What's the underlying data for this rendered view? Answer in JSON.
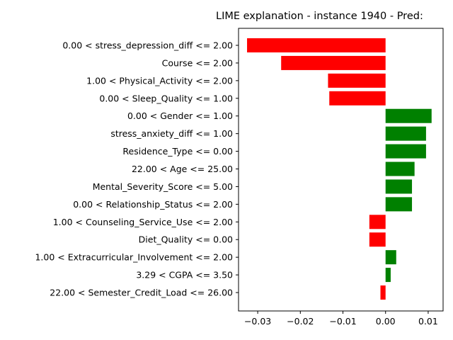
{
  "chart_data": {
    "type": "bar",
    "orientation": "horizontal",
    "title": "LIME explanation - instance 1940 - Pred:",
    "xlabel": "",
    "ylabel": "",
    "xlim": [
      -0.0345,
      0.0135
    ],
    "xticks": [
      -0.03,
      -0.02,
      -0.01,
      0.0,
      0.01
    ],
    "xtick_labels": [
      "−0.03",
      "−0.02",
      "−0.01",
      "0.00",
      "0.01"
    ],
    "grid": false,
    "legend": "none",
    "colors": {
      "positive": "#008000",
      "negative": "#ff0000"
    },
    "categories": [
      "0.00 < stress_depression_diff <= 2.00",
      "Course <= 2.00",
      "1.00 < Physical_Activity <= 2.00",
      "0.00 < Sleep_Quality <= 1.00",
      "0.00 < Gender <= 1.00",
      "stress_anxiety_diff <= 1.00",
      "Residence_Type <= 0.00",
      "22.00 < Age <= 25.00",
      "Mental_Severity_Score <= 5.00",
      "0.00 < Relationship_Status <= 2.00",
      "1.00 < Counseling_Service_Use <= 2.00",
      "Diet_Quality <= 0.00",
      "1.00 < Extracurricular_Involvement <= 2.00",
      "3.29 < CGPA <= 3.50",
      "22.00 < Semester_Credit_Load <= 26.00"
    ],
    "values": [
      -0.0325,
      -0.0245,
      -0.0135,
      -0.0132,
      0.0108,
      0.0095,
      0.0095,
      0.0068,
      0.0062,
      0.0062,
      -0.0038,
      -0.0038,
      0.0025,
      0.0012,
      -0.0012
    ]
  }
}
